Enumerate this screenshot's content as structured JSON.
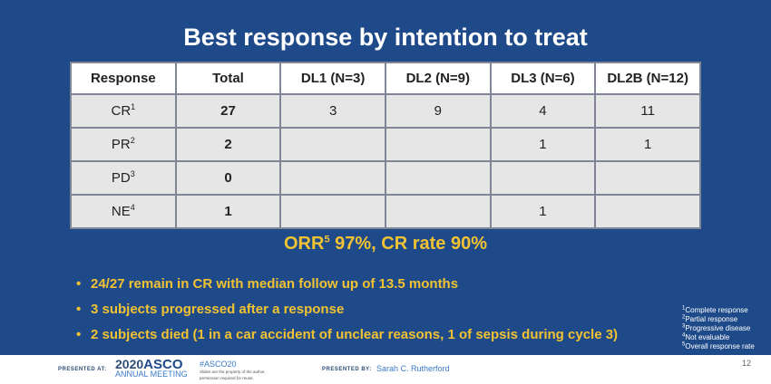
{
  "title": "Best response by intention to treat",
  "table": {
    "headers": [
      "Response",
      "Total",
      "DL1 (N=3)",
      "DL2 (N=9)",
      "DL3 (N=6)",
      "DL2B (N=12)"
    ],
    "rows": [
      {
        "label": "CR",
        "sup": "1",
        "total": "27",
        "dl1": "3",
        "dl2": "9",
        "dl3": "4",
        "dl2b": "11"
      },
      {
        "label": "PR",
        "sup": "2",
        "total": "2",
        "dl1": "",
        "dl2": "",
        "dl3": "1",
        "dl2b": "1"
      },
      {
        "label": "PD",
        "sup": "3",
        "total": "0",
        "dl1": "",
        "dl2": "",
        "dl3": "",
        "dl2b": ""
      },
      {
        "label": "NE",
        "sup": "4",
        "total": "1",
        "dl1": "",
        "dl2": "",
        "dl3": "1",
        "dl2b": ""
      }
    ]
  },
  "orr": {
    "pre": "ORR",
    "sup": "5",
    "post": " 97%, CR rate 90%"
  },
  "bullets": [
    "24/27 remain in CR with median follow up of 13.5 months",
    "3 subjects progressed after a response",
    "2 subjects died (1 in a car accident of unclear reasons, 1 of sepsis during cycle 3)"
  ],
  "footnotes": [
    {
      "sup": "1",
      "text": "Complete response"
    },
    {
      "sup": "2",
      "text": "Partial response"
    },
    {
      "sup": "3",
      "text": "Progressive disease"
    },
    {
      "sup": "4",
      "text": "Not evaluable"
    },
    {
      "sup": "5",
      "text": "Overall response rate"
    }
  ],
  "footer": {
    "presented_at": "PRESENTED AT:",
    "year": "2020",
    "asco": "ASCO",
    "meeting": "ANNUAL MEETING",
    "hashtag": "#ASCO20",
    "disclaimer": "Slides are the property of the author, permission required for reuse.",
    "presented_by": "PRESENTED BY:",
    "presenter": "Sarah C. Rutherford",
    "page": "12"
  },
  "colors": {
    "background": "#1f4a89",
    "highlight": "#f1c232",
    "cell": "#e6e6e6"
  }
}
